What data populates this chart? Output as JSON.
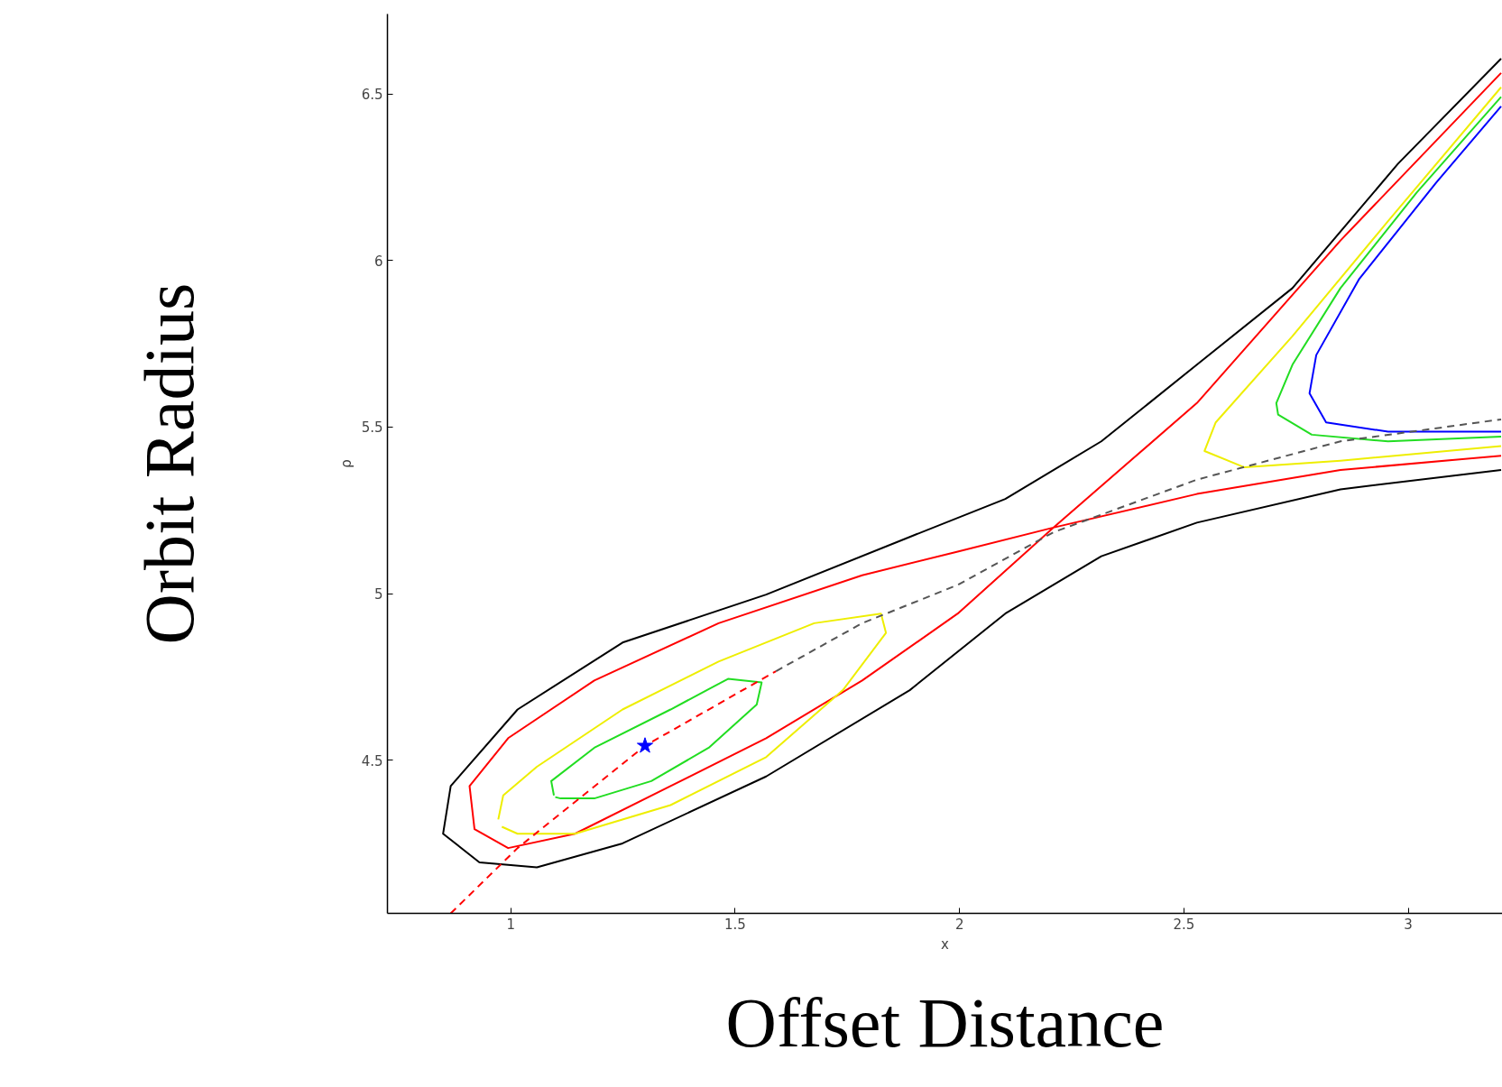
{
  "chart_data": {
    "type": "line",
    "xlabel": "x",
    "ylabel": "ρ",
    "annotations": [
      "Orbit Radius",
      "Offset Distance"
    ],
    "xlim": [
      0.725,
      3.21
    ],
    "ylim": [
      4.04,
      6.74
    ],
    "xticks": [
      1,
      1.5,
      2,
      2.5,
      3
    ],
    "yticks": [
      4.5,
      5,
      5.5,
      6,
      6.5
    ],
    "grid": false,
    "series": [
      {
        "color": "#000000",
        "x": [
          3.207,
          2.977,
          2.742,
          2.529,
          2.316,
          2.102,
          1.889,
          1.569,
          1.249,
          1.015,
          0.866,
          0.849,
          0.93,
          1.058,
          1.249,
          1.569,
          1.889,
          2.102,
          2.316,
          2.529,
          2.849,
          3.207
        ],
        "values": [
          6.606,
          6.29,
          5.917,
          5.687,
          5.457,
          5.284,
          5.17,
          4.997,
          4.853,
          4.652,
          4.422,
          4.279,
          4.193,
          4.178,
          4.25,
          4.451,
          4.71,
          4.94,
          5.112,
          5.213,
          5.313,
          5.371
        ]
      },
      {
        "color": "#ff0000",
        "x": [
          3.207,
          2.849,
          2.529,
          2.209,
          1.996,
          1.783,
          1.569,
          1.356,
          1.143,
          0.994,
          0.919,
          0.908,
          0.994,
          1.186,
          1.463,
          1.783,
          1.996,
          2.209,
          2.529,
          2.849,
          3.207
        ],
        "values": [
          6.563,
          6.06,
          5.572,
          5.198,
          4.94,
          4.739,
          4.566,
          4.422,
          4.279,
          4.236,
          4.293,
          4.422,
          4.566,
          4.739,
          4.911,
          5.055,
          5.126,
          5.198,
          5.299,
          5.371,
          5.414
        ]
      },
      {
        "color": "#eeee00",
        "values": [
          4.322,
          4.394,
          4.48,
          4.652,
          4.796,
          4.911,
          4.94,
          4.882,
          4.71,
          4.509,
          4.365,
          4.279,
          4.279,
          4.3,
          null,
          6.52,
          6.118,
          5.773,
          5.514,
          5.428,
          5.379,
          5.399,
          5.443
        ],
        "x": [
          0.972,
          0.983,
          1.058,
          1.249,
          1.463,
          1.676,
          1.825,
          1.836,
          1.74,
          1.569,
          1.356,
          1.143,
          1.015,
          0.98,
          null,
          3.207,
          2.955,
          2.742,
          2.571,
          2.546,
          2.635,
          2.849,
          3.207
        ]
      },
      {
        "color": "#22dd22",
        "x": [
          1.096,
          1.09,
          1.186,
          1.356,
          1.484,
          1.559,
          1.548,
          1.441,
          1.313,
          1.186,
          1.111,
          1.099,
          null,
          3.207,
          3.019,
          2.849,
          2.742,
          2.706,
          2.71,
          2.785,
          2.955,
          3.207
        ],
        "values": [
          4.394,
          4.437,
          4.537,
          4.652,
          4.744,
          4.733,
          4.667,
          4.537,
          4.437,
          4.385,
          4.385,
          4.389,
          null,
          6.491,
          6.204,
          5.917,
          5.687,
          5.572,
          5.537,
          5.477,
          5.457,
          5.471
        ]
      },
      {
        "color": "#0000ff",
        "x": [
          3.207,
          3.062,
          2.891,
          2.795,
          2.78,
          2.817,
          2.955,
          3.207
        ],
        "values": [
          6.463,
          6.233,
          5.945,
          5.716,
          5.601,
          5.514,
          5.486,
          5.486
        ]
      },
      {
        "color": "#ff0000",
        "line_style": "dashed",
        "x": [
          0.866,
          1.015,
          1.299,
          1.591
        ],
        "values": [
          4.04,
          4.236,
          4.543,
          4.767
        ]
      },
      {
        "color": "#555555",
        "line_style": "dashed",
        "x": [
          1.591,
          1.783,
          1.996,
          2.209,
          2.529,
          2.849,
          3.207
        ],
        "values": [
          4.767,
          4.911,
          5.026,
          5.184,
          5.342,
          5.457,
          5.523
        ]
      },
      {
        "type": "scatter",
        "marker": "star",
        "color": "#0000ff",
        "x": [
          1.299
        ],
        "values": [
          4.543
        ]
      }
    ]
  }
}
